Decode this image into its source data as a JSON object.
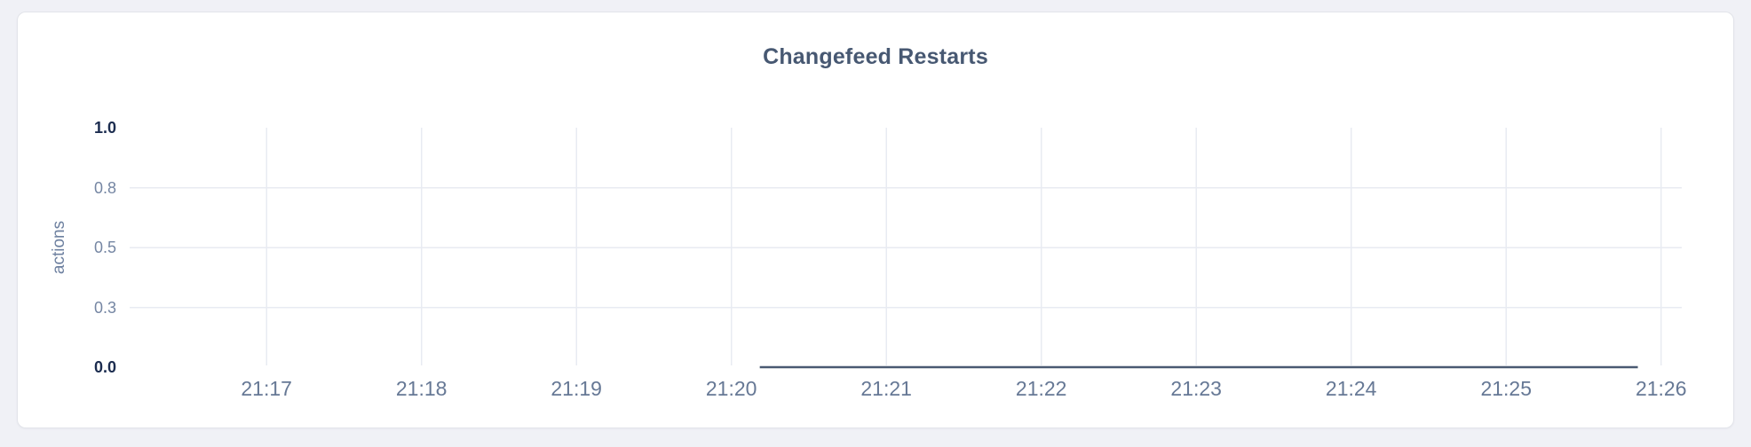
{
  "page": {
    "background_color": "#f0f1f6"
  },
  "card": {
    "background_color": "#ffffff",
    "border_color": "#e2e4ea"
  },
  "chart_data": {
    "type": "line",
    "title": "Changefeed Restarts",
    "xlabel": "",
    "ylabel": "actions",
    "ylim": [
      0.0,
      1.0
    ],
    "x_range": [
      "21:16:07",
      "21:26:08"
    ],
    "x_ticks": [
      "21:17",
      "21:18",
      "21:19",
      "21:20",
      "21:21",
      "21:22",
      "21:23",
      "21:24",
      "21:25",
      "21:26"
    ],
    "y_ticks": [
      {
        "value": 1.0,
        "label": "1.0",
        "emphasis": true
      },
      {
        "value": 0.75,
        "label": "0.8",
        "emphasis": false
      },
      {
        "value": 0.5,
        "label": "0.5",
        "emphasis": false
      },
      {
        "value": 0.25,
        "label": "0.3",
        "emphasis": false
      },
      {
        "value": 0.0,
        "label": "0.0",
        "emphasis": true
      }
    ],
    "grid": {
      "horizontal_values": [
        0.75,
        0.5,
        0.25
      ],
      "vertical_at_x_ticks": true,
      "color": "#e8ebf2"
    },
    "legend_position": "none",
    "series": [
      {
        "name": "changefeed-restarts",
        "color": "#4a5a72",
        "points": [
          [
            "21:20:11",
            0
          ],
          [
            "21:25:51",
            0
          ]
        ]
      }
    ]
  },
  "colors": {
    "title": "#475872",
    "y_tick_emphasis": "#1b2c4f",
    "y_tick_normal": "#7586a3",
    "x_tick": "#667895",
    "y_axis_title": "#6e81a0"
  }
}
